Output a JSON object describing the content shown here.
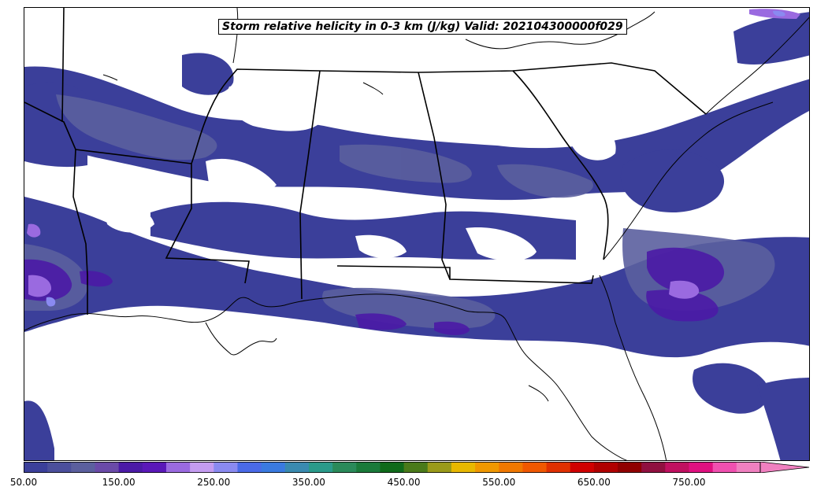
{
  "title": "Storm relative helicity in 0-3 km (J/kg) Valid: 202104300000f029",
  "colorbar": {
    "min": 50,
    "max": 825,
    "step": 25,
    "extend": "max",
    "tick_labels": [
      "50.00",
      "150.00",
      "250.00",
      "350.00",
      "450.00",
      "550.00",
      "650.00",
      "750.00"
    ],
    "tick_values": [
      50,
      150,
      250,
      350,
      450,
      550,
      650,
      750
    ],
    "colors": [
      "#3b3f9a",
      "#4b4f9c",
      "#5b5f9e",
      "#6a4aa8",
      "#4b1aa6",
      "#5a18b8",
      "#9a6ae0",
      "#c49cf0",
      "#8a8af0",
      "#4a6ae8",
      "#3a7ae0",
      "#3a8ab0",
      "#2a9a8a",
      "#2a8a5a",
      "#1a7a3a",
      "#0f6a1a",
      "#4a7a1a",
      "#9a9a1a",
      "#e8b800",
      "#f09800",
      "#f07800",
      "#f05800",
      "#e03000",
      "#d00000",
      "#b00000",
      "#900000",
      "#901040",
      "#c01060",
      "#e01080",
      "#f050b0",
      "#f080c0"
    ]
  },
  "legend_colors": {
    "level_50": "#3b3f9a",
    "level_100": "#5b5f9e",
    "level_150": "#4b1aa6",
    "level_200": "#9a6ae0",
    "level_250": "#8a8af0"
  }
}
